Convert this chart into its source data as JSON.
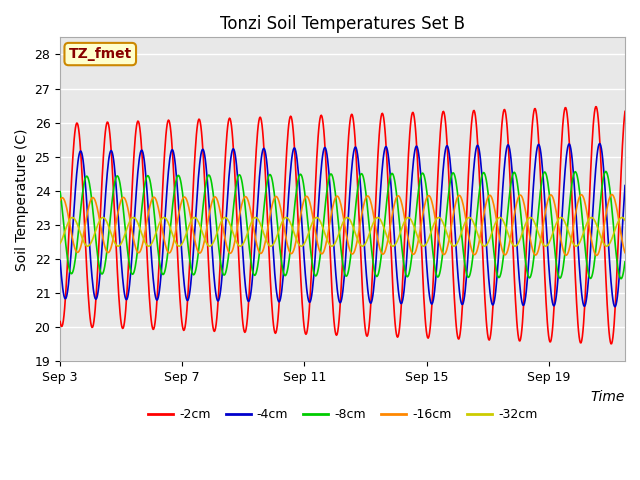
{
  "title": "Tonzi Soil Temperatures Set B",
  "xlabel": "Time",
  "ylabel": "Soil Temperature (C)",
  "ylim": [
    19.0,
    28.5
  ],
  "yticks": [
    19.0,
    20.0,
    21.0,
    22.0,
    23.0,
    24.0,
    25.0,
    26.0,
    27.0,
    28.0
  ],
  "xtick_labels": [
    "Sep 3",
    "Sep 7",
    "Sep 11",
    "Sep 15",
    "Sep 19"
  ],
  "xtick_positions": [
    0,
    4,
    8,
    12,
    16
  ],
  "xlim": [
    0,
    18.5
  ],
  "bg_outer": "#ffffff",
  "bg_inner": "#e8e8e8",
  "grid_color": "#ffffff",
  "series_colors": [
    "#ff0000",
    "#0000cc",
    "#00cc00",
    "#ff8800",
    "#cccc00"
  ],
  "series_labels": [
    "-2cm",
    "-4cm",
    "-8cm",
    "-16cm",
    "-32cm"
  ],
  "annotation_text": "TZ_fmet",
  "annotation_bg": "#ffffcc",
  "annotation_border": "#cc8800",
  "annotation_text_color": "#880000",
  "n_days": 18.5,
  "mean_temp": 23.0,
  "amplitudes": [
    3.5,
    2.4,
    1.5,
    0.8,
    0.42
  ],
  "phase_lags": [
    0.0,
    0.12,
    0.32,
    0.52,
    0.85
  ],
  "title_fontsize": 12,
  "label_fontsize": 10,
  "tick_fontsize": 9
}
